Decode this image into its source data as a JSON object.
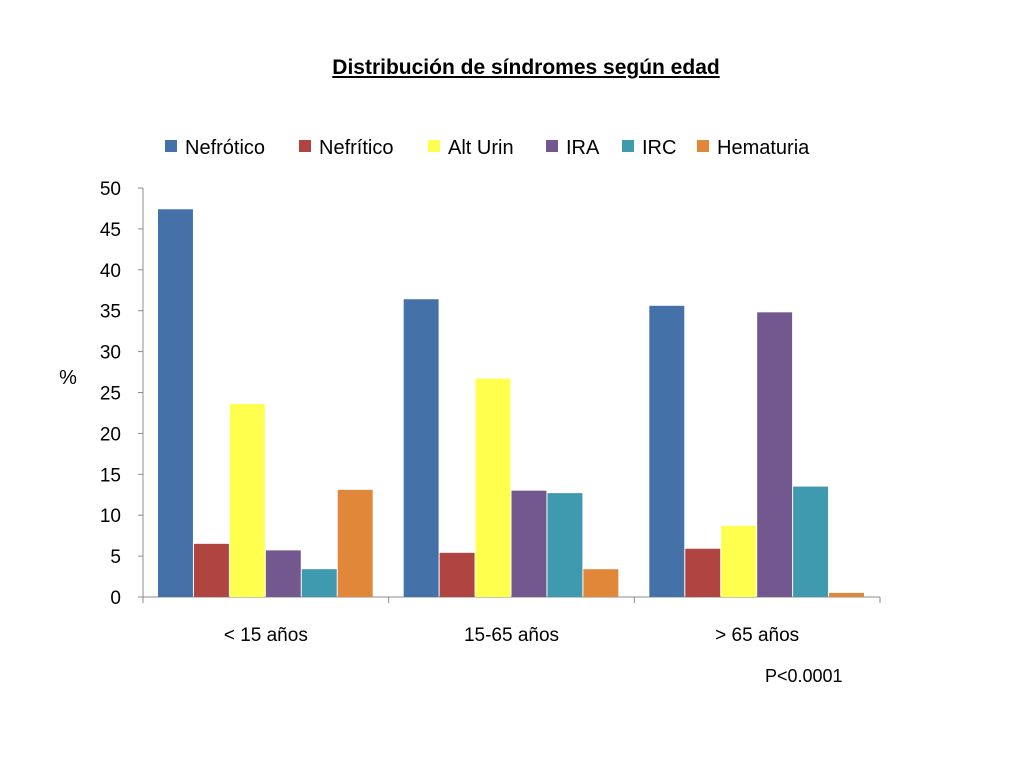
{
  "slide": {
    "note": "P<0.0001"
  },
  "chart_data": {
    "type": "bar",
    "title": "Distribución de síndromes según edad",
    "xlabel": "",
    "ylabel": "%",
    "ylim": [
      0,
      50
    ],
    "yticks": [
      0,
      5,
      10,
      15,
      20,
      25,
      30,
      35,
      40,
      45,
      50
    ],
    "grid": false,
    "legend_position": "top",
    "categories": [
      "< 15 años",
      "15-65 años",
      "> 65 años"
    ],
    "series": [
      {
        "name": "Nefrótico",
        "color": "#4472a8",
        "values": [
          47.4,
          36.4,
          35.6
        ]
      },
      {
        "name": "Nefrítico",
        "color": "#b04440",
        "values": [
          6.5,
          5.4,
          5.9
        ]
      },
      {
        "name": "Alt Urin",
        "color": "#ffff4d",
        "values": [
          23.6,
          26.7,
          8.7
        ]
      },
      {
        "name": "IRA",
        "color": "#735890",
        "values": [
          5.7,
          13.0,
          34.8
        ]
      },
      {
        "name": "IRC",
        "color": "#3f9ab0",
        "values": [
          3.4,
          12.7,
          13.5
        ]
      },
      {
        "name": "Hematuria",
        "color": "#e0873a",
        "values": [
          13.1,
          3.4,
          0.5
        ]
      }
    ]
  }
}
